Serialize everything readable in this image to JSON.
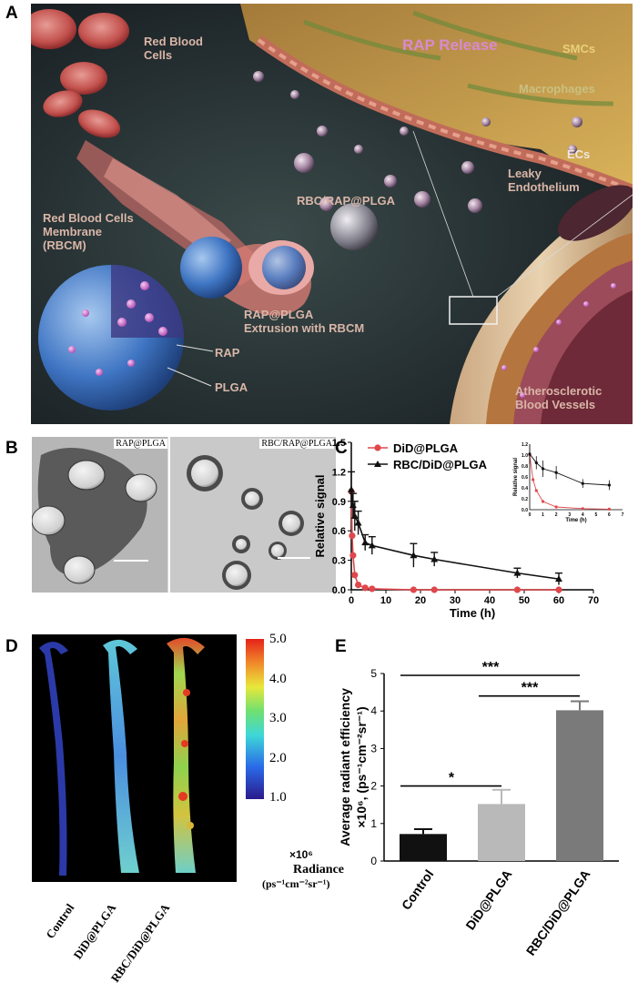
{
  "panel_labels": {
    "a": "A",
    "b": "B",
    "c": "C",
    "d": "D",
    "e": "E"
  },
  "panel_a": {
    "labels": {
      "rbc": "Red Blood\nCells",
      "rbcm": "Red Blood Cells\nMembrane\n(RBCM)",
      "rap_release": "RAP Release",
      "smcs": "SMCs",
      "macrophages": "Macrophages",
      "ecs": "ECs",
      "leaky": "Leaky\nEndothelium",
      "rbc_rap_plga": "RBC/RAP@PLGA",
      "extrusion": "RAP@PLGA\nExtrusion with RBCM",
      "rap": "RAP",
      "plga": "PLGA",
      "athero": "Atherosclerotic\nBlood Vessels"
    }
  },
  "panel_b": {
    "left_label": "RAP@PLGA",
    "right_label": "RBC/RAP@PLGA"
  },
  "panel_c": {
    "chart_data": {
      "type": "line",
      "xlabel": "Time (h)",
      "ylabel": "Relative signal",
      "xlim": [
        0,
        70
      ],
      "ylim": [
        0,
        1.5
      ],
      "xticks": [
        0,
        10,
        20,
        30,
        40,
        50,
        60,
        70
      ],
      "yticks": [
        0.0,
        0.3,
        0.6,
        0.9,
        1.2,
        1.5
      ],
      "legend_position": "top-left",
      "series": [
        {
          "name": "DiD@PLGA",
          "color": "#e0474c",
          "marker": "circle",
          "x": [
            0,
            0.25,
            0.5,
            1,
            2,
            4,
            6,
            18,
            24,
            48,
            60
          ],
          "y": [
            1.0,
            0.55,
            0.35,
            0.15,
            0.05,
            0.02,
            0.01,
            0.0,
            0.0,
            0.0,
            0.0
          ],
          "err": [
            0,
            0,
            0,
            0,
            0,
            0,
            0,
            0,
            0,
            0,
            0
          ]
        },
        {
          "name": "RBC/DiD@PLGA",
          "color": "#111111",
          "marker": "triangle",
          "x": [
            0,
            0.5,
            1,
            2,
            4,
            6,
            18,
            24,
            48,
            60
          ],
          "y": [
            1.02,
            0.86,
            0.75,
            0.68,
            0.48,
            0.45,
            0.35,
            0.31,
            0.17,
            0.11
          ],
          "err": [
            0.18,
            0.12,
            0.15,
            0.12,
            0.08,
            0.09,
            0.12,
            0.07,
            0.05,
            0.06
          ]
        }
      ],
      "inset": {
        "xlabel": "Time (h)",
        "ylabel": "Relative signal",
        "xlim": [
          0,
          7
        ],
        "ylim": [
          0,
          1.2
        ],
        "xticks": [
          0,
          1,
          2,
          3,
          4,
          5,
          6,
          7
        ],
        "yticks": [
          0.0,
          0.2,
          0.4,
          0.6,
          0.8,
          1.0,
          1.2
        ]
      }
    }
  },
  "panel_d": {
    "scale_ticks": [
      "5.0",
      "4.0",
      "3.0",
      "2.0",
      "1.0"
    ],
    "scale_multiplier": "×10⁶",
    "scale_title": "Radiance",
    "scale_units": "(ps⁻¹cm⁻²sr⁻¹)",
    "samples": [
      "Control",
      "DiD@PLGA",
      "RBC/DiD@PLGA"
    ]
  },
  "panel_e": {
    "chart_data": {
      "type": "bar",
      "categories": [
        "Control",
        "DiD@PLGA",
        "RBC/DiD@PLGA"
      ],
      "values": [
        0.72,
        1.52,
        4.02
      ],
      "errors": [
        0.13,
        0.38,
        0.24
      ],
      "colors": [
        "#111111",
        "#b9b9b9",
        "#7a7a7a"
      ],
      "ylabel": "Average radiant efficiency\n×10⁶, (ps⁻¹cm⁻²sr⁻¹)",
      "ylim": [
        0,
        5
      ],
      "yticks": [
        0,
        1,
        2,
        3,
        4,
        5
      ],
      "significance": [
        {
          "from": 0,
          "to": 2,
          "label": "***"
        },
        {
          "from": 1,
          "to": 2,
          "label": "***"
        },
        {
          "from": 0,
          "to": 1,
          "label": "*"
        }
      ]
    }
  }
}
